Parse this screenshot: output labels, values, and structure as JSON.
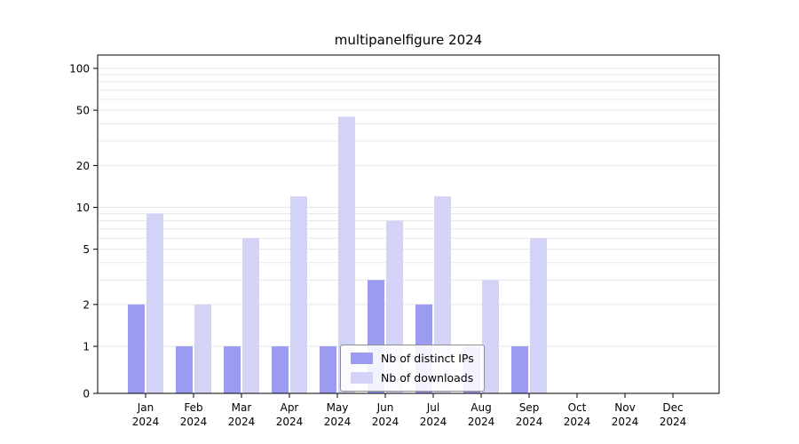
{
  "chart_data": {
    "type": "bar",
    "title": "multipanelfigure 2024",
    "categories": [
      "Jan",
      "Feb",
      "Mar",
      "Apr",
      "May",
      "Jun",
      "Jul",
      "Aug",
      "Sep",
      "Oct",
      "Nov",
      "Dec"
    ],
    "year": "2024",
    "series": [
      {
        "name": "Nb of distinct IPs",
        "color": "#9b9bef",
        "values": [
          2,
          1,
          1,
          1,
          1,
          3,
          2,
          1,
          1,
          0,
          0,
          0
        ]
      },
      {
        "name": "Nb of downloads",
        "color": "#d3d3f8",
        "values": [
          9,
          2,
          6,
          12,
          45,
          8,
          12,
          3,
          6,
          0,
          0,
          0
        ]
      }
    ],
    "yscale": "symlog",
    "y_ticks": [
      0,
      1,
      2,
      5,
      10,
      20,
      50,
      100
    ],
    "ylim": [
      0,
      125
    ],
    "grid": "horizontal-minor",
    "grid_color": "#e7e7e7",
    "legend_position": "lower center"
  }
}
